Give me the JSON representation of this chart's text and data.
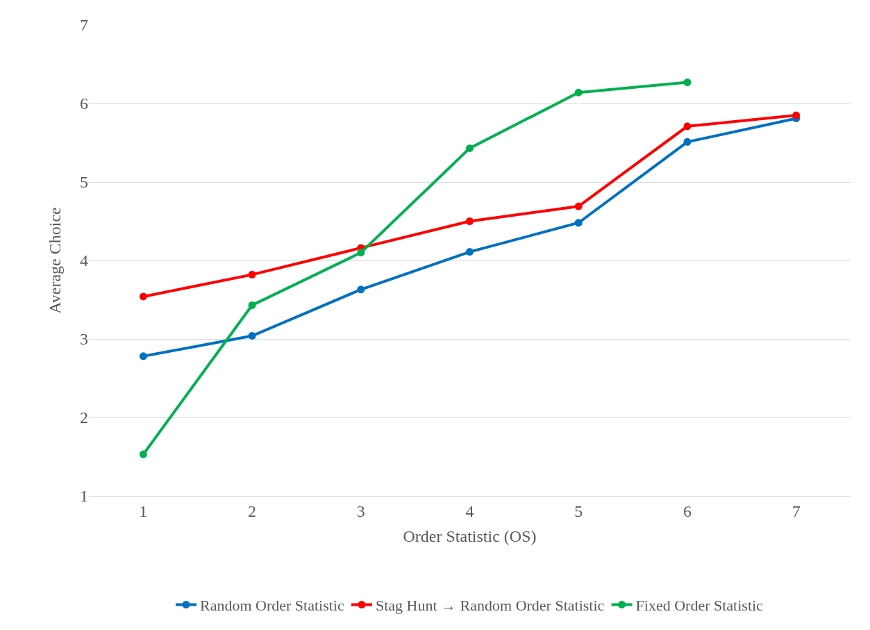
{
  "chart_data": {
    "type": "line",
    "xlabel": "Order Statistic (OS)",
    "ylabel": "Average Choice",
    "categories": [
      "1",
      "2",
      "3",
      "4",
      "5",
      "6",
      "7"
    ],
    "series": [
      {
        "name": "Random Order Statistic",
        "color": "#0070c0",
        "values": [
          2.78,
          3.04,
          3.63,
          4.11,
          4.48,
          5.51,
          5.81
        ]
      },
      {
        "name": "Stag Hunt → Random Order Statistic",
        "color": "#ff0000",
        "values": [
          3.54,
          3.82,
          4.16,
          4.5,
          4.69,
          5.71,
          5.85
        ]
      },
      {
        "name": "Fixed Order Statistic",
        "color": "#00b050",
        "values": [
          1.53,
          3.43,
          4.1,
          5.43,
          6.14,
          6.27,
          null
        ]
      }
    ],
    "ylim": [
      1,
      7
    ],
    "yticks": [
      1,
      2,
      3,
      4,
      5,
      6,
      7
    ],
    "grid": "y",
    "legend": "bottom",
    "marker": "circle",
    "line_style": "solid"
  }
}
